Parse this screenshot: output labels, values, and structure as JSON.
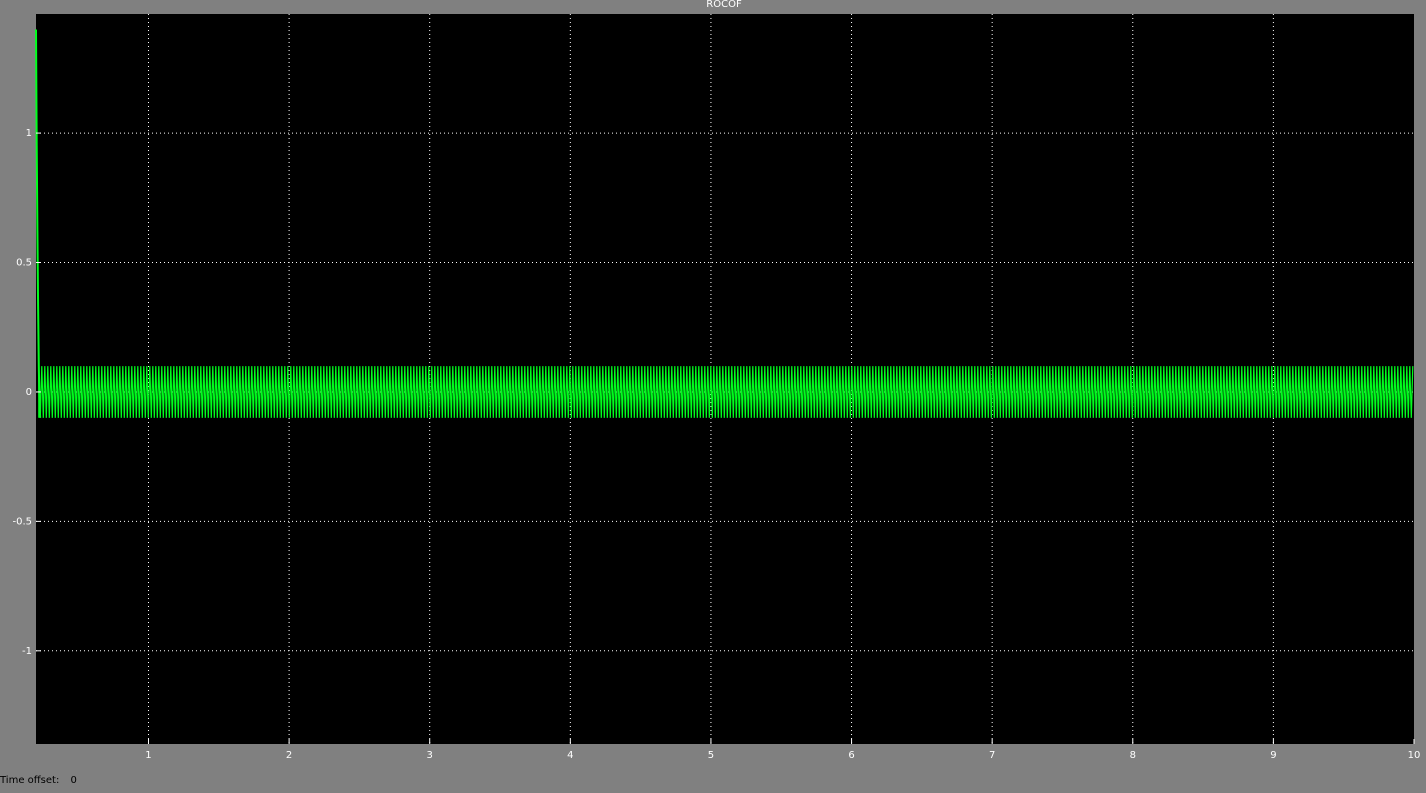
{
  "window": {
    "title": "ROCOF",
    "time_offset_label": "Time offset:",
    "time_offset_value": "0"
  },
  "colors": {
    "background": "#808080",
    "axes_background": "#000000",
    "grid": "#ffffff",
    "signal": "#00ff1e",
    "tick_text": "#ffffff"
  },
  "chart_data": {
    "type": "line",
    "title": "ROCOF",
    "xlabel": "",
    "ylabel": "",
    "xlim": [
      0.2,
      10
    ],
    "ylim": [
      -1.36,
      1.46
    ],
    "x_ticks": [
      1,
      2,
      3,
      4,
      5,
      6,
      7,
      8,
      9,
      10
    ],
    "x_tick_labels": [
      "1",
      "2",
      "3",
      "4",
      "5",
      "6",
      "7",
      "8",
      "9",
      "10"
    ],
    "y_ticks": [
      1,
      0.5,
      0,
      -0.5,
      -1
    ],
    "y_tick_labels": [
      "1",
      "0.5",
      "0",
      "-0.5",
      "-1"
    ],
    "grid": true,
    "grid_style": "dotted",
    "series": [
      {
        "x": [
          0.2,
          0.205,
          0.21,
          0.215,
          0.22,
          0.225,
          0.23,
          10
        ],
        "y": [
          1.4,
          0.95,
          0.62,
          0.33,
          0.1,
          -0.05,
          -0.1,
          0
        ],
        "oscillation_amplitude": 0.1,
        "oscillation_start": 0.22,
        "oscillation_end": 10,
        "color": "#00ff1e"
      }
    ]
  }
}
